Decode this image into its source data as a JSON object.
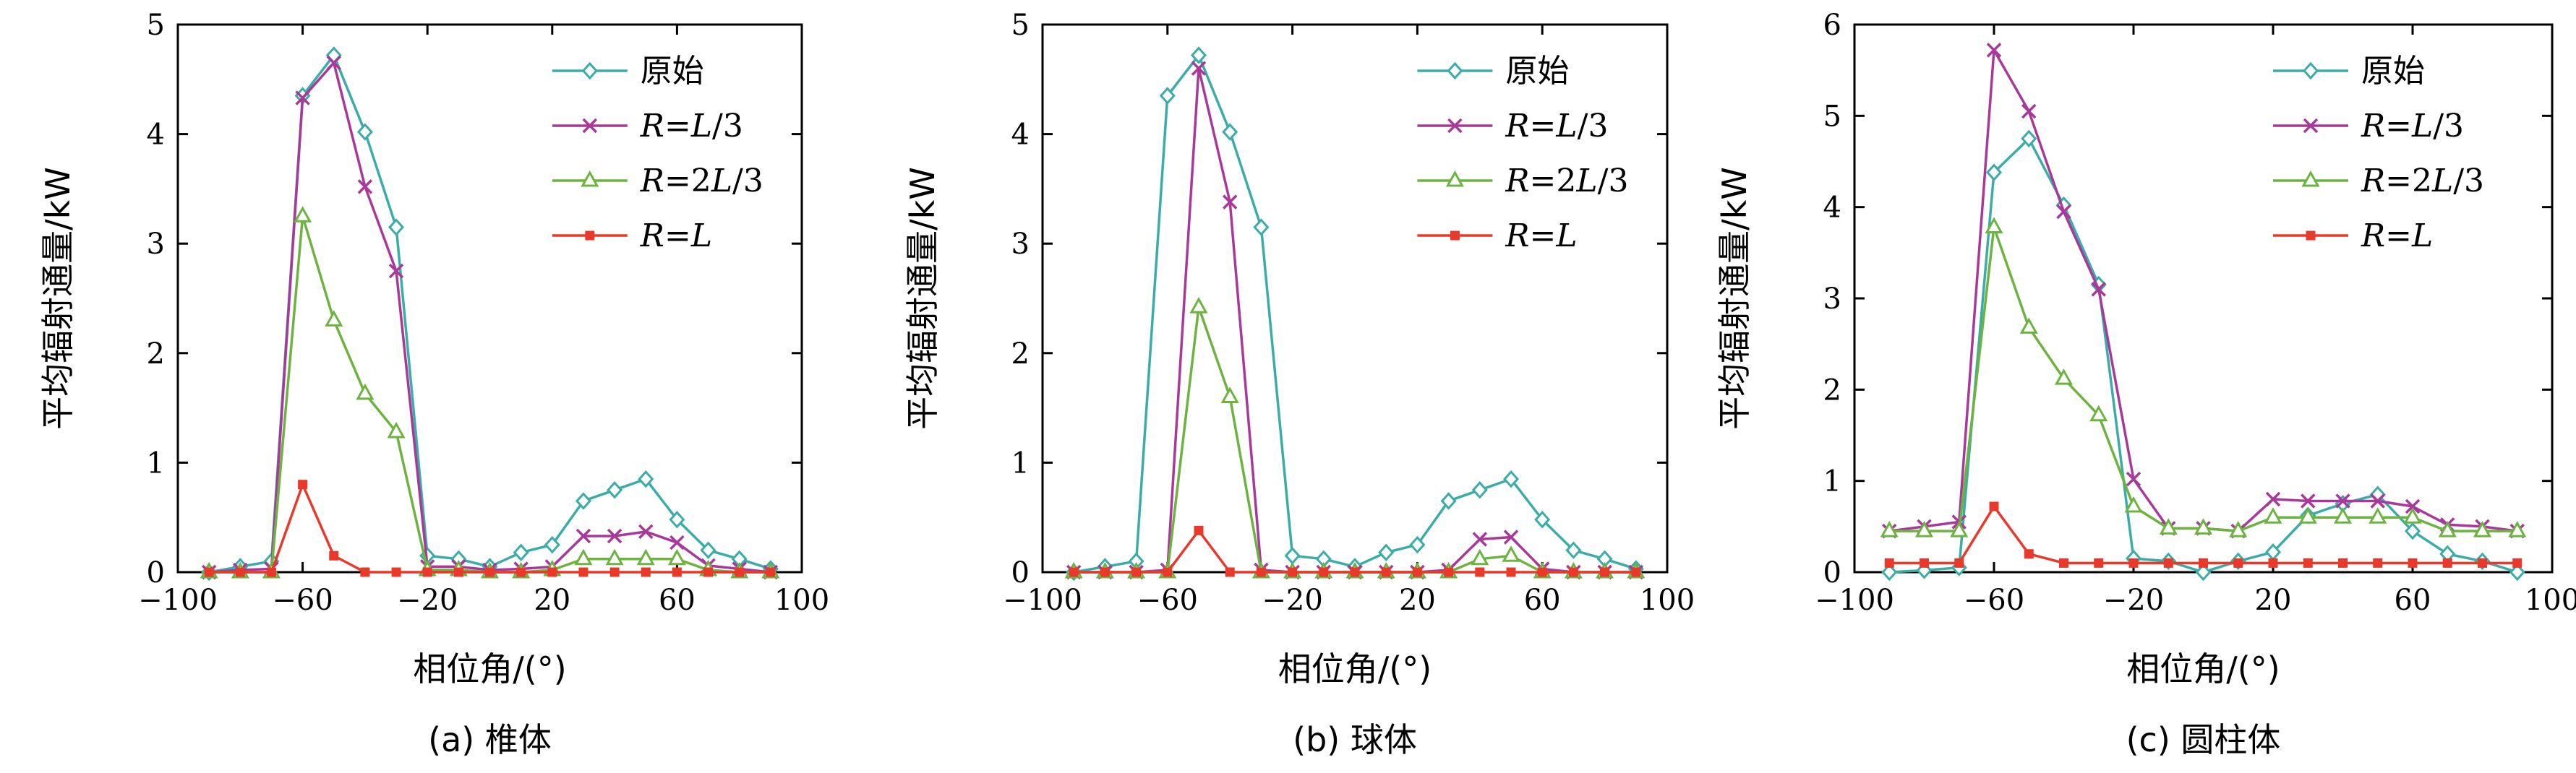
{
  "chart_data": [
    {
      "type": "line",
      "caption": "(a) 椎体",
      "xlabel": "相位角/(°)",
      "ylabel": "平均辐射通量/kW",
      "xlim": [
        -100,
        100
      ],
      "ylim": [
        0,
        5
      ],
      "xticks": [
        -100,
        -60,
        -20,
        20,
        60,
        100
      ],
      "xtick_labels": [
        "−100",
        "−60",
        "−20",
        "20",
        "60",
        "100"
      ],
      "yticks": [
        0,
        1,
        2,
        3,
        4,
        5
      ],
      "legend_position": "top-right",
      "x": [
        -90,
        -80,
        -70,
        -60,
        -50,
        -40,
        -30,
        -20,
        -10,
        0,
        10,
        20,
        30,
        40,
        50,
        60,
        70,
        80,
        90
      ],
      "series": [
        {
          "name": "原始",
          "color": "#3aada8",
          "marker": "diamond",
          "values": [
            0.0,
            0.05,
            0.1,
            4.35,
            4.72,
            4.02,
            3.15,
            0.15,
            0.12,
            0.05,
            0.18,
            0.25,
            0.65,
            0.75,
            0.85,
            0.48,
            0.2,
            0.12,
            0.03
          ]
        },
        {
          "name": "R=L/3",
          "color": "#a8399a",
          "marker": "x",
          "values": [
            0.0,
            0.02,
            0.03,
            4.33,
            4.65,
            3.52,
            2.75,
            0.05,
            0.05,
            0.02,
            0.03,
            0.05,
            0.33,
            0.33,
            0.37,
            0.27,
            0.06,
            0.03,
            0.0
          ]
        },
        {
          "name": "R=2L/3",
          "color": "#6db33f",
          "marker": "triangle",
          "values": [
            0.0,
            0.0,
            0.0,
            3.25,
            2.3,
            1.63,
            1.28,
            0.02,
            0.02,
            0.0,
            0.0,
            0.02,
            0.12,
            0.12,
            0.12,
            0.12,
            0.02,
            0.0,
            0.0
          ]
        },
        {
          "name": "R=L",
          "color": "#e8392a",
          "marker": "square",
          "values": [
            0.0,
            0.0,
            0.0,
            0.8,
            0.15,
            0.0,
            0.0,
            0.0,
            0.0,
            0.0,
            0.0,
            0.0,
            0.0,
            0.0,
            0.0,
            0.0,
            0.0,
            0.0,
            0.0
          ]
        }
      ]
    },
    {
      "type": "line",
      "caption": "(b) 球体",
      "xlabel": "相位角/(°)",
      "ylabel": "平均辐射通量/kW",
      "xlim": [
        -100,
        100
      ],
      "ylim": [
        0,
        5
      ],
      "xticks": [
        -100,
        -60,
        -20,
        20,
        60,
        100
      ],
      "xtick_labels": [
        "−100",
        "−60",
        "−20",
        "20",
        "60",
        "100"
      ],
      "yticks": [
        0,
        1,
        2,
        3,
        4,
        5
      ],
      "legend_position": "top-right",
      "x": [
        -90,
        -80,
        -70,
        -60,
        -50,
        -40,
        -30,
        -20,
        -10,
        0,
        10,
        20,
        30,
        40,
        50,
        60,
        70,
        80,
        90
      ],
      "series": [
        {
          "name": "原始",
          "color": "#3aada8",
          "marker": "diamond",
          "values": [
            0.0,
            0.05,
            0.1,
            4.35,
            4.72,
            4.02,
            3.15,
            0.15,
            0.12,
            0.05,
            0.18,
            0.25,
            0.65,
            0.75,
            0.85,
            0.48,
            0.2,
            0.12,
            0.03
          ]
        },
        {
          "name": "R=L/3",
          "color": "#a8399a",
          "marker": "x",
          "values": [
            0.0,
            0.0,
            0.0,
            0.02,
            4.6,
            3.38,
            0.02,
            0.0,
            0.0,
            0.0,
            0.0,
            0.0,
            0.02,
            0.3,
            0.32,
            0.03,
            0.0,
            0.0,
            0.0
          ]
        },
        {
          "name": "R=2L/3",
          "color": "#6db33f",
          "marker": "triangle",
          "values": [
            0.0,
            0.0,
            0.0,
            0.0,
            2.42,
            1.6,
            0.0,
            0.0,
            0.0,
            0.0,
            0.0,
            0.0,
            0.0,
            0.12,
            0.15,
            0.0,
            0.0,
            0.0,
            0.0
          ]
        },
        {
          "name": "R=L",
          "color": "#e8392a",
          "marker": "square",
          "values": [
            0.0,
            0.0,
            0.0,
            0.0,
            0.38,
            0.0,
            0.0,
            0.0,
            0.0,
            0.0,
            0.0,
            0.0,
            0.0,
            0.0,
            0.0,
            0.0,
            0.0,
            0.0,
            0.0
          ]
        }
      ]
    },
    {
      "type": "line",
      "caption": "(c) 圆柱体",
      "xlabel": "相位角/(°)",
      "ylabel": "平均辐射通量/kW",
      "xlim": [
        -100,
        100
      ],
      "ylim": [
        0,
        6
      ],
      "xticks": [
        -100,
        -60,
        -20,
        20,
        60,
        100
      ],
      "xtick_labels": [
        "−100",
        "−60",
        "−20",
        "20",
        "60",
        "100"
      ],
      "yticks": [
        0,
        1,
        2,
        3,
        4,
        5,
        6
      ],
      "legend_position": "top-right",
      "x": [
        -90,
        -80,
        -70,
        -60,
        -50,
        -40,
        -30,
        -20,
        -10,
        0,
        10,
        20,
        30,
        40,
        50,
        60,
        70,
        80,
        90
      ],
      "series": [
        {
          "name": "原始",
          "color": "#3aada8",
          "marker": "diamond",
          "values": [
            0.0,
            0.02,
            0.05,
            4.38,
            4.75,
            4.02,
            3.15,
            0.15,
            0.12,
            0.0,
            0.12,
            0.22,
            0.62,
            0.75,
            0.85,
            0.45,
            0.2,
            0.12,
            0.0
          ]
        },
        {
          "name": "R=L/3",
          "color": "#a8399a",
          "marker": "x",
          "values": [
            0.45,
            0.5,
            0.55,
            5.72,
            5.05,
            3.95,
            3.1,
            1.02,
            0.48,
            0.48,
            0.45,
            0.8,
            0.78,
            0.78,
            0.78,
            0.72,
            0.52,
            0.5,
            0.45
          ]
        },
        {
          "name": "R=2L/3",
          "color": "#6db33f",
          "marker": "triangle",
          "values": [
            0.45,
            0.45,
            0.45,
            3.78,
            2.68,
            2.12,
            1.72,
            0.72,
            0.48,
            0.48,
            0.45,
            0.6,
            0.6,
            0.6,
            0.6,
            0.6,
            0.45,
            0.45,
            0.45
          ]
        },
        {
          "name": "R=L",
          "color": "#e8392a",
          "marker": "square",
          "values": [
            0.1,
            0.1,
            0.1,
            0.72,
            0.2,
            0.1,
            0.1,
            0.1,
            0.1,
            0.1,
            0.1,
            0.1,
            0.1,
            0.1,
            0.1,
            0.1,
            0.1,
            0.1,
            0.1
          ]
        }
      ]
    }
  ]
}
